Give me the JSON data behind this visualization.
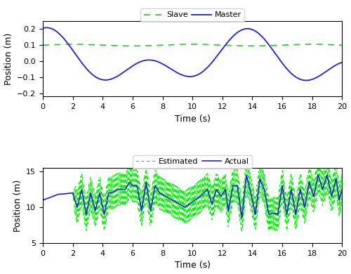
{
  "top_plot": {
    "xlabel": "Time (s)",
    "ylabel": "Position (m)",
    "xlim": [
      0,
      20
    ],
    "ylim": [
      -0.22,
      0.25
    ],
    "yticks": [
      -0.2,
      -0.1,
      0.0,
      0.1,
      0.2
    ],
    "xticks": [
      0,
      2,
      4,
      6,
      8,
      10,
      12,
      14,
      16,
      18,
      20
    ],
    "slave_color": "#33CC33",
    "master_color": "#2222CC",
    "slave_value": 0.1,
    "legend_labels": [
      "Slave",
      "Master"
    ]
  },
  "bottom_plot": {
    "xlabel": "Time (s)",
    "ylabel": "Position (m)",
    "xlim": [
      0,
      20
    ],
    "ylim": [
      5,
      15.5
    ],
    "yticks": [
      5,
      10,
      15
    ],
    "xticks": [
      0,
      2,
      4,
      6,
      8,
      10,
      12,
      14,
      16,
      18,
      20
    ],
    "actual_color": "#2222CC",
    "estimated_color": "#00EE00",
    "legend_labels": [
      "Actual",
      "Estimated"
    ]
  },
  "background_color": "#ffffff",
  "figure_width": 5.0,
  "figure_height": 3.9,
  "dpi": 100
}
